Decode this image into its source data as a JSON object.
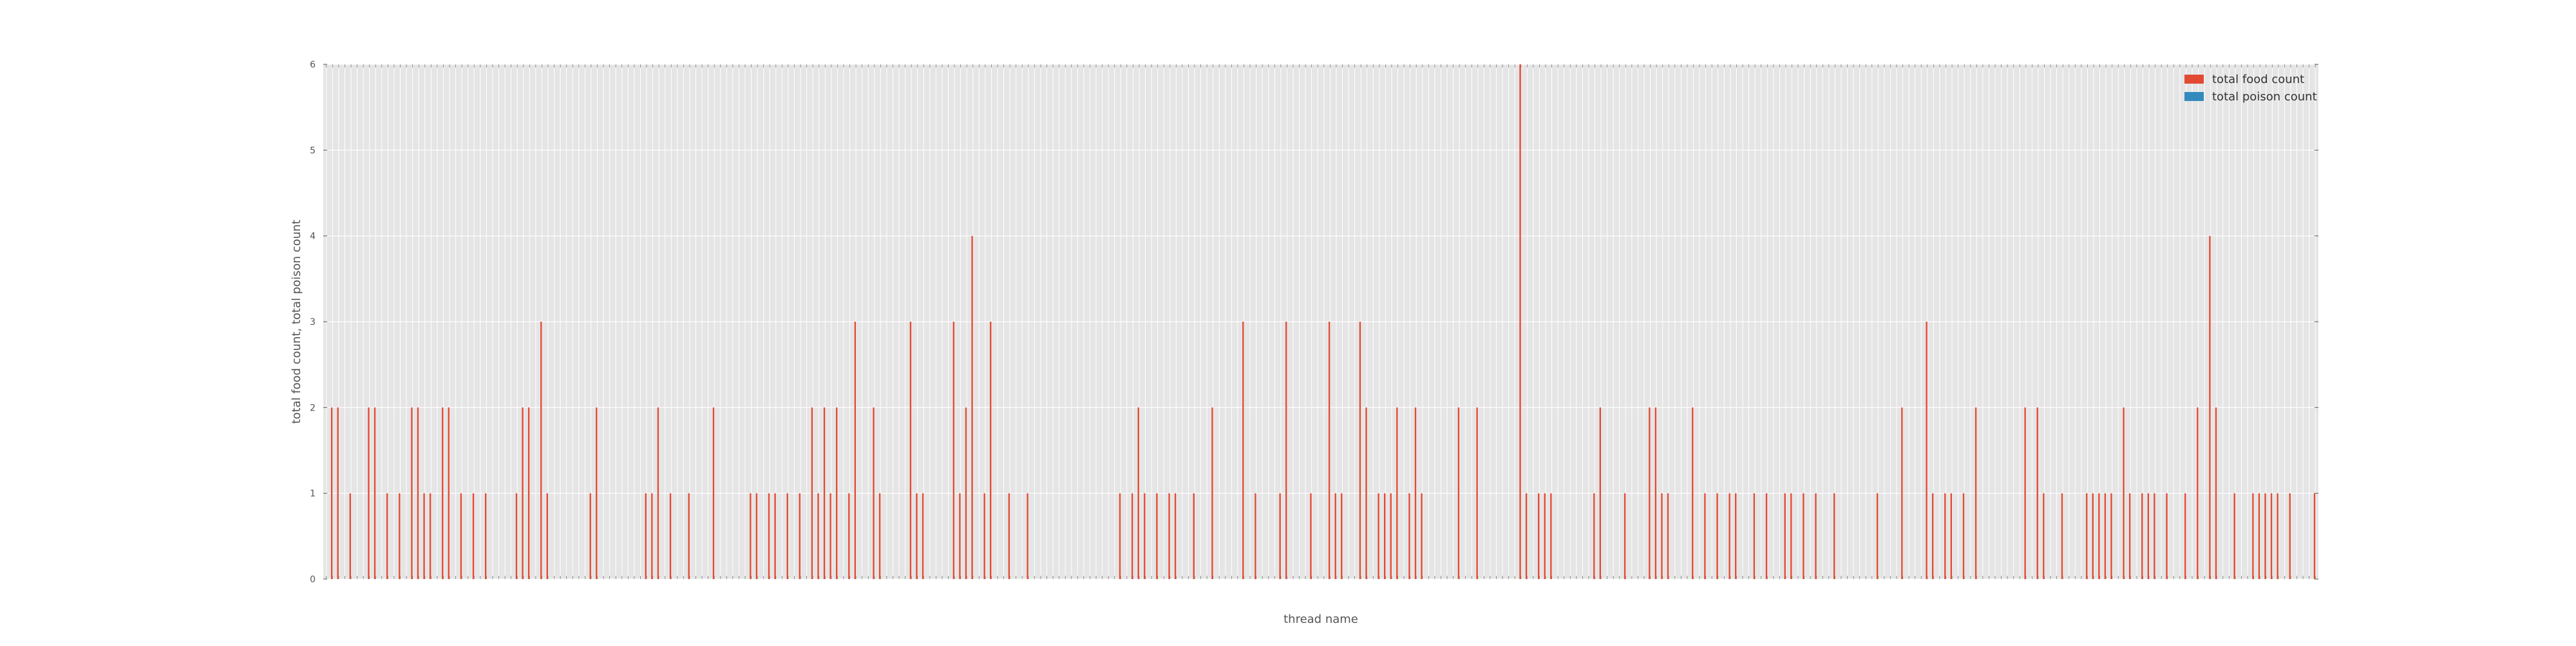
{
  "chart_data": {
    "type": "bar",
    "xlabel": "thread name",
    "ylabel": "total food count, total poison count",
    "ylim": [
      0,
      6
    ],
    "yticks": [
      0,
      1,
      2,
      3,
      4,
      5,
      6
    ],
    "grid": true,
    "legend_position": "top-right",
    "series": [
      {
        "name": "total food count",
        "color": "#E24A33"
      },
      {
        "name": "total poison count",
        "color": "#348ABD"
      }
    ],
    "food_values": [
      0,
      2,
      2,
      0,
      1,
      0,
      0,
      2,
      2,
      0,
      1,
      0,
      1,
      0,
      2,
      2,
      1,
      1,
      0,
      2,
      2,
      0,
      1,
      0,
      1,
      0,
      1,
      0,
      0,
      0,
      0,
      1,
      2,
      2,
      0,
      3,
      1,
      0,
      0,
      0,
      0,
      0,
      0,
      1,
      2,
      0,
      0,
      0,
      0,
      0,
      0,
      0,
      1,
      1,
      2,
      0,
      1,
      0,
      0,
      1,
      0,
      0,
      0,
      2,
      0,
      0,
      0,
      0,
      0,
      1,
      1,
      0,
      1,
      1,
      0,
      1,
      0,
      1,
      0,
      2,
      1,
      2,
      1,
      2,
      0,
      1,
      3,
      0,
      0,
      2,
      1,
      0,
      0,
      0,
      0,
      3,
      1,
      1,
      0,
      0,
      0,
      0,
      3,
      1,
      2,
      4,
      0,
      1,
      3,
      0,
      0,
      1,
      0,
      0,
      1,
      0,
      0,
      0,
      0,
      0,
      0,
      0,
      0,
      0,
      0,
      0,
      0,
      0,
      0,
      1,
      0,
      1,
      2,
      1,
      0,
      1,
      0,
      1,
      1,
      0,
      0,
      1,
      0,
      0,
      2,
      0,
      0,
      0,
      0,
      3,
      0,
      1,
      0,
      0,
      0,
      1,
      3,
      0,
      0,
      0,
      1,
      0,
      0,
      3,
      1,
      1,
      0,
      0,
      3,
      2,
      0,
      1,
      1,
      1,
      2,
      0,
      1,
      2,
      1,
      0,
      0,
      0,
      0,
      0,
      2,
      0,
      0,
      2,
      0,
      0,
      0,
      0,
      0,
      0,
      6,
      1,
      0,
      1,
      1,
      1,
      0,
      0,
      0,
      0,
      0,
      0,
      1,
      2,
      0,
      0,
      0,
      1,
      0,
      0,
      0,
      2,
      2,
      1,
      1,
      0,
      0,
      0,
      2,
      0,
      1,
      0,
      1,
      0,
      1,
      1,
      0,
      0,
      1,
      0,
      1,
      0,
      0,
      1,
      1,
      0,
      1,
      0,
      1,
      0,
      0,
      1,
      0,
      0,
      0,
      0,
      0,
      0,
      1,
      0,
      0,
      0,
      2,
      0,
      0,
      0,
      3,
      1,
      0,
      1,
      1,
      0,
      1,
      0,
      2,
      0,
      0,
      0,
      0,
      0,
      0,
      0,
      2,
      0,
      2,
      1,
      0,
      0,
      1,
      0,
      0,
      0,
      1,
      1,
      1,
      1,
      1,
      0,
      2,
      1,
      0,
      1,
      1,
      1,
      0,
      1,
      0,
      0,
      1,
      0,
      2,
      0,
      4,
      2,
      0,
      0,
      1,
      0,
      0,
      1,
      1,
      1,
      1,
      1,
      0,
      1,
      0,
      0,
      0,
      1
    ],
    "poison_values": [],
    "x_tick_labels": []
  }
}
